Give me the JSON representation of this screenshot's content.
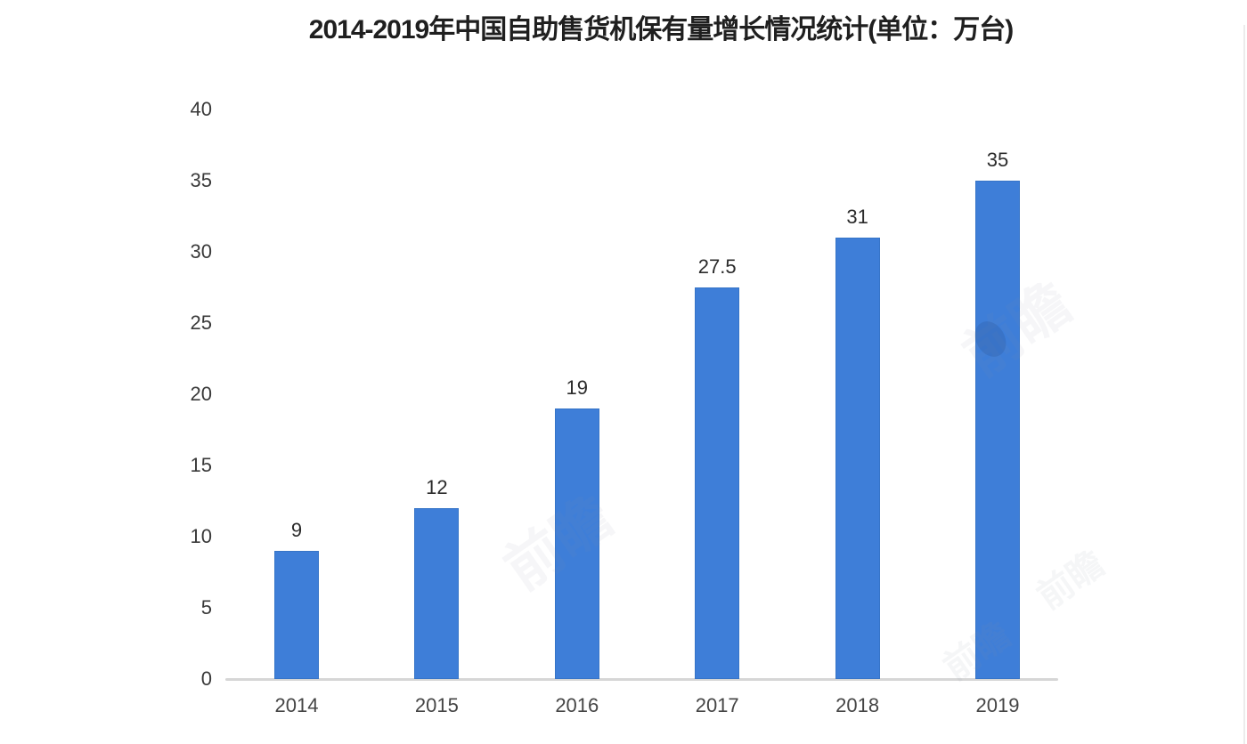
{
  "title": "2014-2019年中国自助售货机保有量增长情况统计(单位：万台)",
  "watermark_text": "前瞻",
  "colors": {
    "bar_fill": "#3E7ED8",
    "bar_edge": "#2F6BBA",
    "axis_line": "#D6D6D6",
    "title_text": "#1F1F1F",
    "tick_text": "#3A3A3A",
    "value_text": "#2B2B2B",
    "background": "#FFFFFF"
  },
  "chart_data": {
    "type": "bar",
    "title": "2014-2019年中国自助售货机保有量增长情况统计(单位：万台)",
    "categories": [
      "2014",
      "2015",
      "2016",
      "2017",
      "2018",
      "2019"
    ],
    "values": [
      9,
      12,
      19,
      27.5,
      31,
      35
    ],
    "value_labels": [
      "9",
      "12",
      "19",
      "27.5",
      "31",
      "35"
    ],
    "series_name": "自助售货机保有量",
    "unit": "万台",
    "xlabel": "",
    "ylabel": "",
    "ylim": [
      0,
      40
    ],
    "yticks": [
      0,
      5,
      10,
      15,
      20,
      25,
      30,
      35,
      40
    ],
    "grid": false,
    "legend": null,
    "bar_color": "#3E7ED8"
  }
}
